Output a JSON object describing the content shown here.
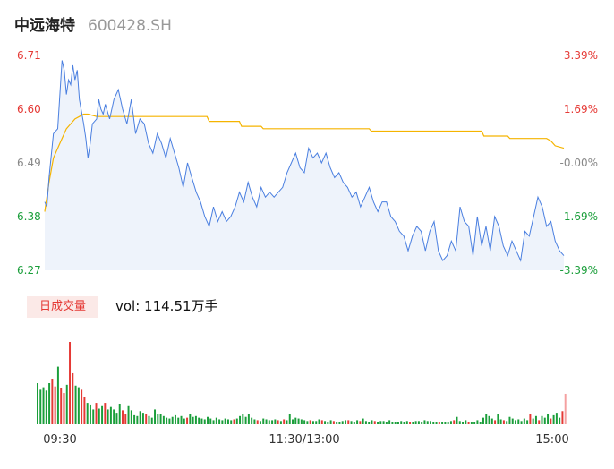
{
  "header": {
    "name": "中远海特",
    "code": "600428.SH"
  },
  "chart_data": [
    {
      "type": "line",
      "title": "",
      "y_axis_left": {
        "labels": [
          "6.71",
          "6.60",
          "6.49",
          "6.38",
          "6.27"
        ],
        "values": [
          6.71,
          6.6,
          6.49,
          6.38,
          6.27
        ]
      },
      "y_axis_right": {
        "labels": [
          "3.39%",
          "1.69%",
          "-0.00%",
          "-1.69%",
          "-3.39%"
        ]
      },
      "ylim": [
        6.27,
        6.71
      ],
      "pre_close": 6.49,
      "x_ticks": [
        "09:30",
        "11:30/13:00",
        "15:00"
      ],
      "colors": {
        "price": "#4a7fe0",
        "avg": "#f5b400",
        "up": "#e53935",
        "down": "#1a9e3a",
        "flat": "#888888",
        "area": "#eef3fb"
      },
      "series": [
        {
          "key": "price",
          "x": [
            0,
            1,
            2,
            4,
            6,
            8,
            9,
            10,
            11,
            12,
            13,
            14,
            15,
            16,
            18,
            19,
            20,
            21,
            22,
            24,
            25,
            26,
            27,
            28,
            30,
            32,
            34,
            36,
            38,
            40,
            42,
            44,
            46,
            48,
            50,
            52,
            54,
            56,
            58,
            60,
            62,
            64,
            66,
            68,
            70,
            72,
            74,
            76,
            78,
            80,
            82,
            84,
            86,
            88,
            90,
            92,
            94,
            96,
            98,
            100,
            102,
            104,
            106,
            108,
            110,
            112,
            114,
            116,
            118,
            120,
            122,
            124,
            126,
            128,
            130,
            132,
            134,
            136,
            138,
            140,
            142,
            144,
            146,
            148,
            150,
            152,
            154,
            156,
            158,
            160,
            162,
            164,
            166,
            168,
            170,
            172,
            174,
            176,
            178,
            180,
            182,
            184,
            186,
            188,
            190,
            192,
            194,
            196,
            198,
            200,
            202,
            204,
            206,
            208,
            210,
            212,
            214,
            216,
            218,
            220,
            222,
            224,
            226,
            228,
            230,
            232,
            234,
            236,
            238,
            240
          ],
          "values": [
            6.41,
            6.4,
            6.46,
            6.55,
            6.56,
            6.7,
            6.68,
            6.63,
            6.66,
            6.65,
            6.69,
            6.66,
            6.68,
            6.62,
            6.57,
            6.54,
            6.5,
            6.53,
            6.57,
            6.58,
            6.62,
            6.6,
            6.59,
            6.61,
            6.58,
            6.62,
            6.64,
            6.6,
            6.57,
            6.62,
            6.55,
            6.58,
            6.57,
            6.53,
            6.51,
            6.55,
            6.53,
            6.5,
            6.54,
            6.51,
            6.48,
            6.44,
            6.49,
            6.46,
            6.43,
            6.41,
            6.38,
            6.36,
            6.4,
            6.37,
            6.39,
            6.37,
            6.38,
            6.4,
            6.43,
            6.41,
            6.45,
            6.42,
            6.4,
            6.44,
            6.42,
            6.43,
            6.42,
            6.43,
            6.44,
            6.47,
            6.49,
            6.51,
            6.48,
            6.47,
            6.52,
            6.5,
            6.51,
            6.49,
            6.51,
            6.48,
            6.46,
            6.47,
            6.45,
            6.44,
            6.42,
            6.43,
            6.4,
            6.42,
            6.44,
            6.41,
            6.39,
            6.41,
            6.41,
            6.38,
            6.37,
            6.35,
            6.34,
            6.31,
            6.34,
            6.36,
            6.35,
            6.31,
            6.35,
            6.37,
            6.31,
            6.29,
            6.3,
            6.33,
            6.31,
            6.4,
            6.37,
            6.36,
            6.3,
            6.38,
            6.32,
            6.36,
            6.31,
            6.38,
            6.36,
            6.32,
            6.3,
            6.33,
            6.31,
            6.29,
            6.35,
            6.34,
            6.38,
            6.42,
            6.4,
            6.36,
            6.37,
            6.33,
            6.31,
            6.3
          ]
        },
        {
          "key": "avg",
          "x": [
            0,
            2,
            4,
            6,
            8,
            10,
            12,
            14,
            16,
            18,
            20,
            24,
            30,
            40,
            60,
            75,
            76,
            90,
            91,
            100,
            101,
            150,
            151,
            202,
            203,
            214,
            215,
            232,
            234,
            236,
            240
          ],
          "values": [
            6.39,
            6.45,
            6.5,
            6.52,
            6.54,
            6.56,
            6.57,
            6.58,
            6.585,
            6.59,
            6.59,
            6.585,
            6.585,
            6.585,
            6.585,
            6.585,
            6.575,
            6.575,
            6.565,
            6.565,
            6.56,
            6.56,
            6.555,
            6.555,
            6.545,
            6.545,
            6.54,
            6.54,
            6.535,
            6.525,
            6.52
          ]
        }
      ]
    },
    {
      "type": "bar",
      "title": "日成交量",
      "label": "vol: 114.51万手",
      "x_ticks": [
        "09:30",
        "11:30/13:00",
        "15:00"
      ],
      "values": [
        0.5,
        0.42,
        0.45,
        0.41,
        0.5,
        0.55,
        0.46,
        0.7,
        0.44,
        0.38,
        0.48,
        1.0,
        0.62,
        0.47,
        0.45,
        0.42,
        0.33,
        0.26,
        0.24,
        0.18,
        0.26,
        0.19,
        0.22,
        0.26,
        0.18,
        0.21,
        0.18,
        0.14,
        0.25,
        0.17,
        0.12,
        0.22,
        0.17,
        0.11,
        0.1,
        0.16,
        0.14,
        0.12,
        0.1,
        0.08,
        0.18,
        0.13,
        0.12,
        0.1,
        0.08,
        0.07,
        0.09,
        0.11,
        0.08,
        0.1,
        0.07,
        0.08,
        0.12,
        0.09,
        0.1,
        0.08,
        0.07,
        0.06,
        0.09,
        0.07,
        0.05,
        0.08,
        0.06,
        0.05,
        0.07,
        0.06,
        0.05,
        0.06,
        0.07,
        0.1,
        0.12,
        0.09,
        0.13,
        0.08,
        0.06,
        0.05,
        0.04,
        0.07,
        0.06,
        0.05,
        0.05,
        0.06,
        0.05,
        0.04,
        0.06,
        0.05,
        0.13,
        0.06,
        0.08,
        0.07,
        0.06,
        0.05,
        0.04,
        0.05,
        0.04,
        0.04,
        0.06,
        0.05,
        0.04,
        0.03,
        0.05,
        0.04,
        0.03,
        0.03,
        0.04,
        0.05,
        0.05,
        0.04,
        0.03,
        0.05,
        0.04,
        0.07,
        0.04,
        0.03,
        0.05,
        0.04,
        0.03,
        0.04,
        0.04,
        0.03,
        0.05,
        0.03,
        0.03,
        0.03,
        0.04,
        0.03,
        0.04,
        0.03,
        0.03,
        0.04,
        0.04,
        0.03,
        0.05,
        0.04,
        0.04,
        0.03,
        0.03,
        0.03,
        0.03,
        0.03,
        0.03,
        0.04,
        0.05,
        0.09,
        0.04,
        0.03,
        0.05,
        0.03,
        0.03,
        0.03,
        0.05,
        0.03,
        0.08,
        0.12,
        0.1,
        0.07,
        0.05,
        0.13,
        0.06,
        0.05,
        0.04,
        0.09,
        0.07,
        0.05,
        0.06,
        0.04,
        0.07,
        0.05,
        0.12,
        0.07,
        0.1,
        0.05,
        0.1,
        0.08,
        0.12,
        0.07,
        0.11,
        0.14,
        0.08,
        0.16,
        0.37
      ],
      "directions": "ddddduuduuduudduudddudduddddduudddddduddddddddddddduddddddddddddddduddddddduddddddududddddddduddduddduddddudddudddduddddddddddduddddddddduddddudddduddddddddudduddddddddudduddduddduddddddudu"
    }
  ]
}
